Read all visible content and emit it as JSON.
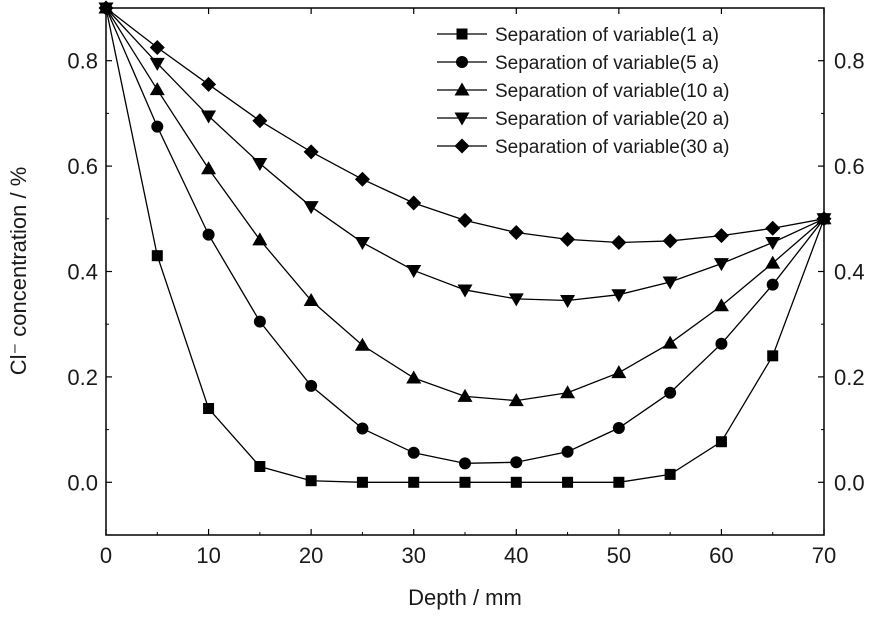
{
  "chart_data": {
    "type": "line",
    "title": "",
    "xlabel": "Depth / mm",
    "ylabel": "Cl⁻ concentration / %",
    "xlim": [
      0,
      70
    ],
    "ylim": [
      -0.1,
      0.9
    ],
    "xticks": [
      0,
      10,
      20,
      30,
      40,
      50,
      60,
      70
    ],
    "yticks": [
      0.0,
      0.2,
      0.4,
      0.6,
      0.8
    ],
    "xtick_labels": [
      "0",
      "10",
      "20",
      "30",
      "40",
      "50",
      "60",
      "70"
    ],
    "ytick_labels": [
      "0.0",
      "0.2",
      "0.4",
      "0.6",
      "0.8"
    ],
    "right_ytick_labels": [
      "0.0",
      "0.2",
      "0.4",
      "0.6",
      "0.8"
    ],
    "legend_position": "top-right",
    "grid": false,
    "x": [
      0,
      5,
      10,
      15,
      20,
      25,
      30,
      35,
      40,
      45,
      50,
      55,
      60,
      65,
      70
    ],
    "series": [
      {
        "name": "Separation of variable(1 a)",
        "marker": "square",
        "values": [
          0.9,
          0.43,
          0.14,
          0.03,
          0.003,
          0.0,
          0.0,
          0.0,
          0.0,
          0.0,
          0.0,
          0.015,
          0.077,
          0.24,
          0.5
        ]
      },
      {
        "name": "Separation of variable(5 a)",
        "marker": "circle",
        "values": [
          0.9,
          0.675,
          0.47,
          0.305,
          0.183,
          0.102,
          0.056,
          0.036,
          0.038,
          0.058,
          0.103,
          0.17,
          0.263,
          0.375,
          0.5
        ]
      },
      {
        "name": "Separation of variable(10 a)",
        "marker": "triangle-up",
        "values": [
          0.9,
          0.745,
          0.595,
          0.46,
          0.345,
          0.26,
          0.198,
          0.163,
          0.155,
          0.17,
          0.208,
          0.264,
          0.335,
          0.416,
          0.5
        ]
      },
      {
        "name": "Separation of variable(20 a)",
        "marker": "triangle-down",
        "values": [
          0.9,
          0.795,
          0.695,
          0.605,
          0.523,
          0.455,
          0.402,
          0.365,
          0.348,
          0.345,
          0.356,
          0.38,
          0.415,
          0.455,
          0.5
        ]
      },
      {
        "name": "Separation of variable(30 a)",
        "marker": "diamond",
        "values": [
          0.9,
          0.825,
          0.755,
          0.686,
          0.627,
          0.575,
          0.53,
          0.497,
          0.474,
          0.461,
          0.455,
          0.458,
          0.468,
          0.482,
          0.5
        ]
      }
    ]
  }
}
